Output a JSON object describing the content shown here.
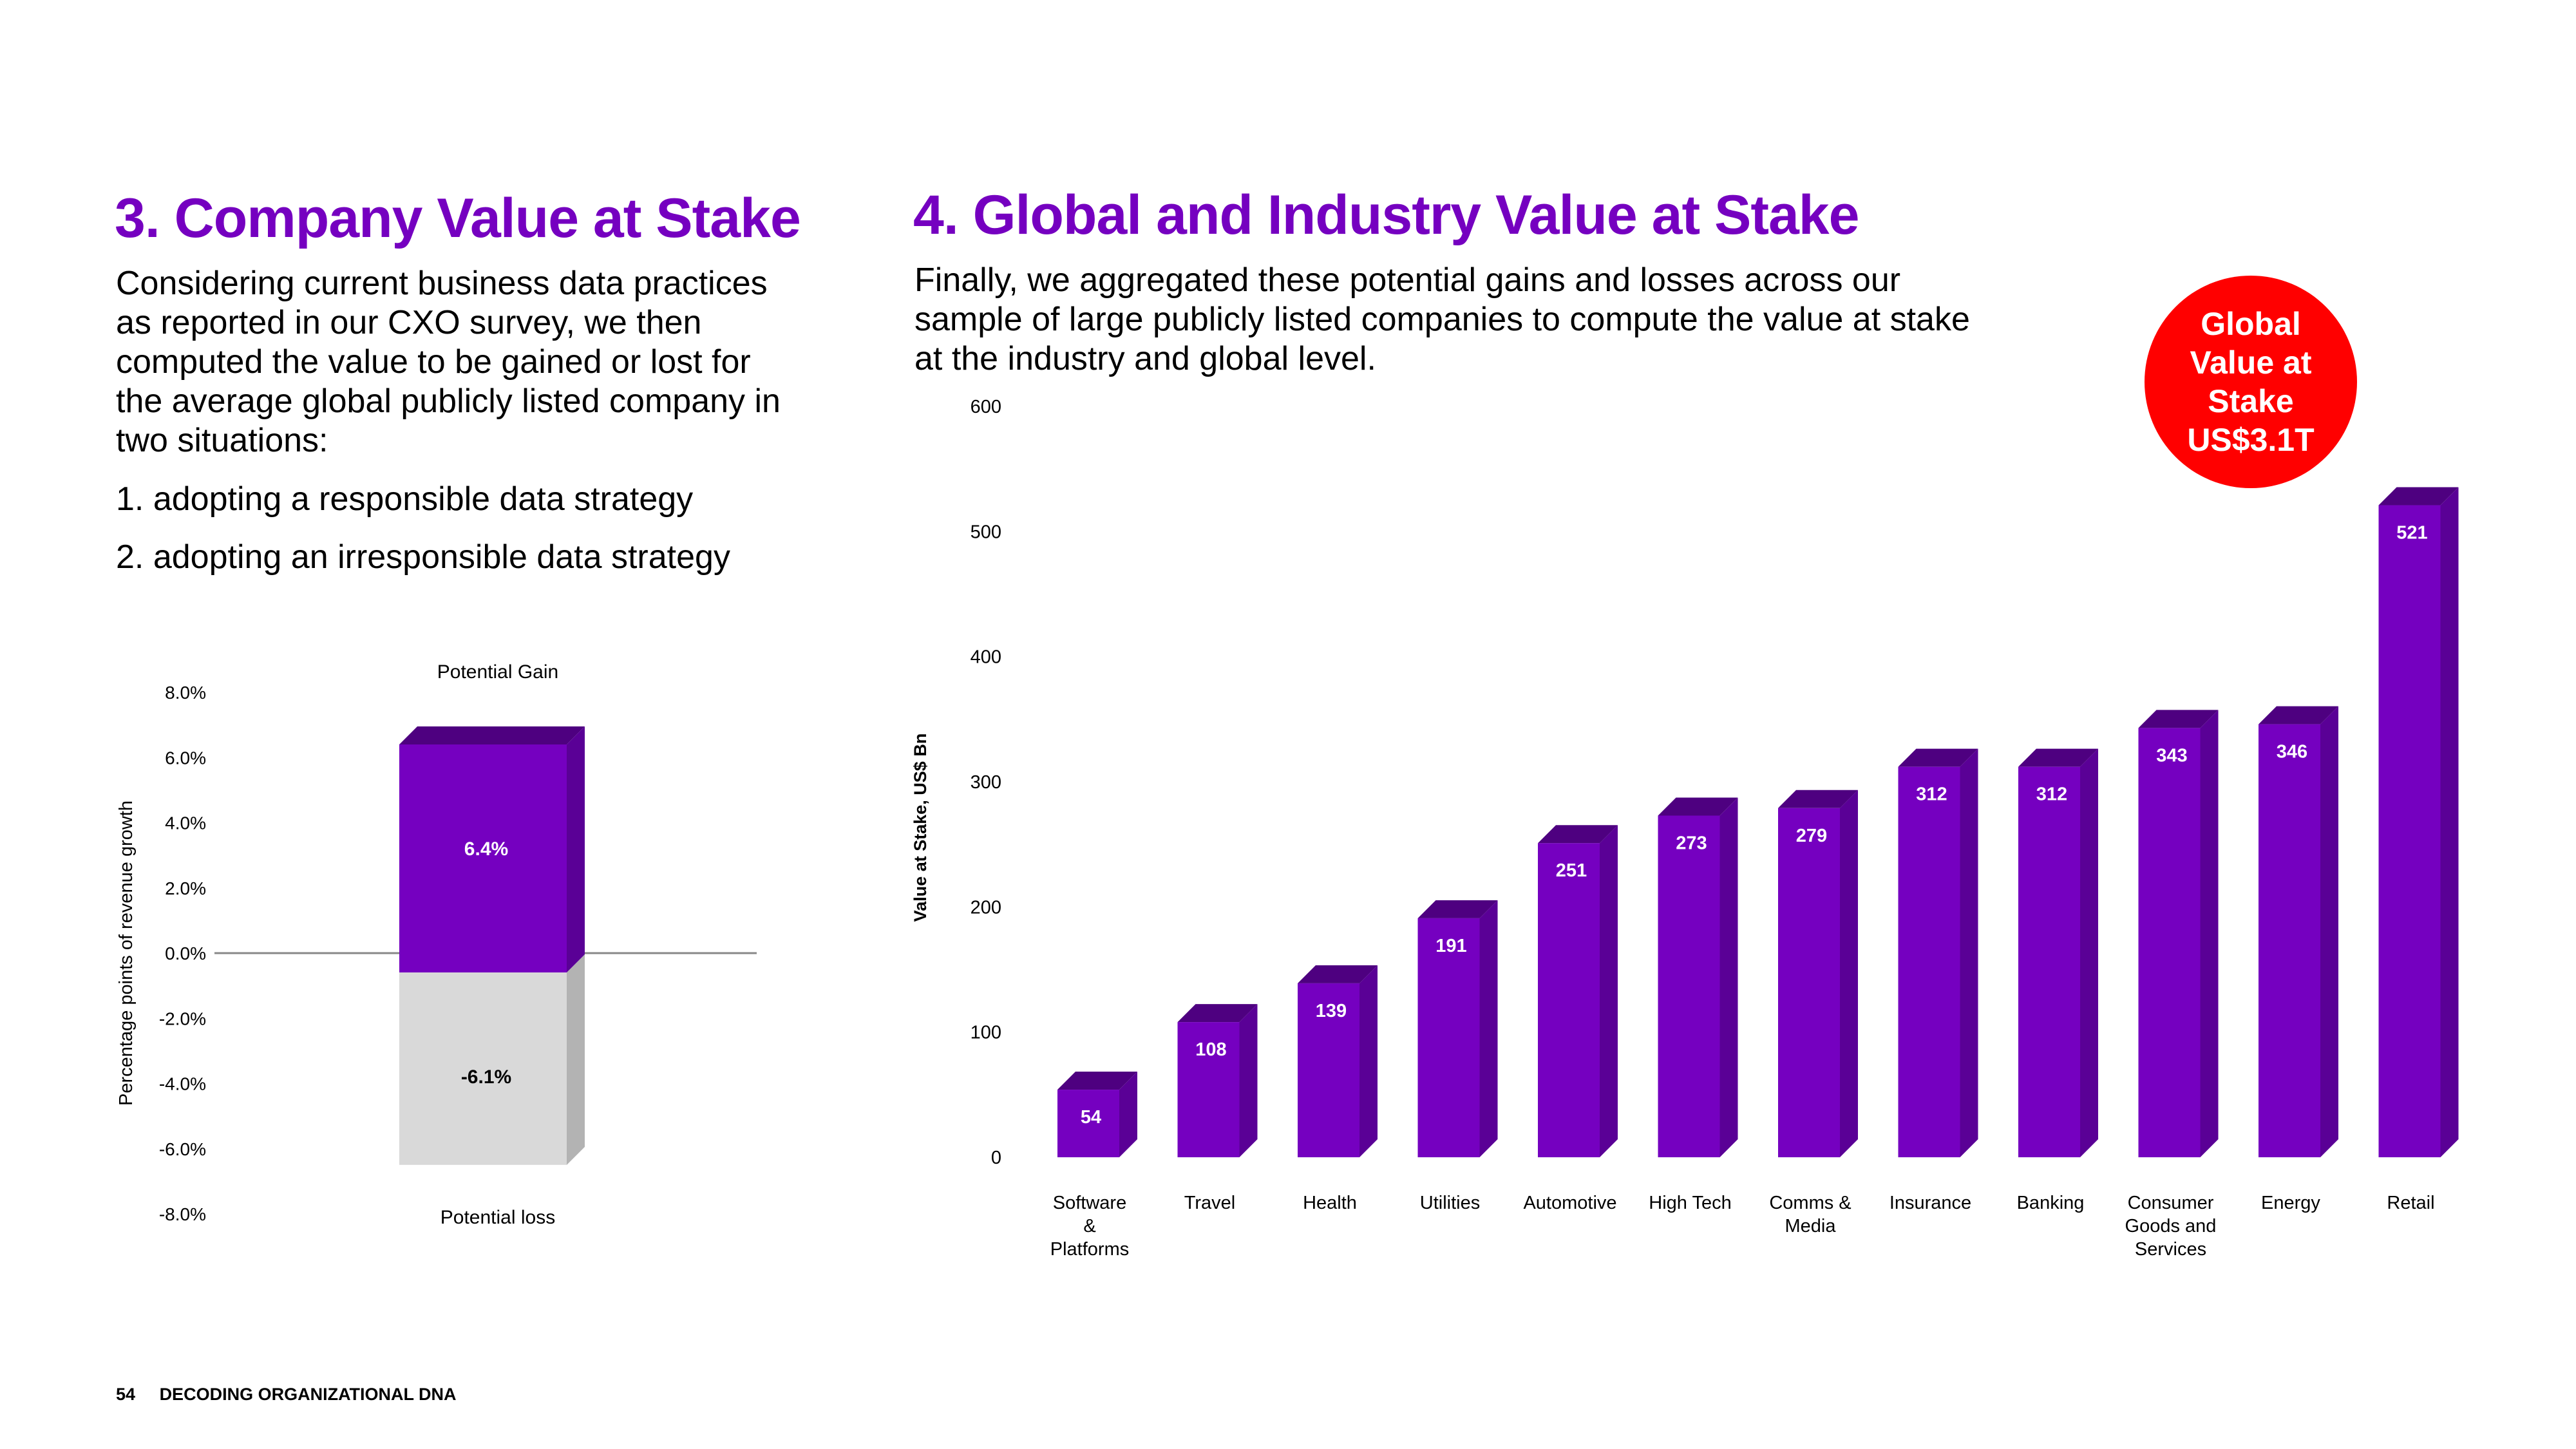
{
  "left": {
    "title": "3. Company Value at Stake",
    "intro_lines": [
      "Considering current business data practices",
      "as reported in our CXO survey, we then",
      "computed the value to be gained or lost for",
      "the average global publicly listed company in",
      "two situations:"
    ],
    "list": [
      "1. adopting a responsible data strategy",
      "2. adopting an irresponsible data strategy"
    ]
  },
  "right": {
    "title": "4. Global and Industry Value at Stake",
    "intro_lines": [
      "Finally, we aggregated these potential gains and losses across our",
      "sample of large publicly listed companies to compute the value at stake",
      "at the industry and global level."
    ]
  },
  "badge": {
    "lines": [
      "Global",
      "Value at",
      "Stake",
      "US$3.1T"
    ]
  },
  "footer": {
    "page_number": "54",
    "title": "DECODING ORGANIZATIONAL DNA"
  },
  "colors": {
    "purple": "#7500c0",
    "purple_dark": "#4e0080",
    "purple_side": "#5a0096",
    "grey_front": "#d9d9d9",
    "grey_side": "#b3b3b3",
    "badge_red": "#ff0000"
  },
  "chart_data": [
    {
      "type": "bar",
      "title": "",
      "ylabel": "Percentage  points of revenue growth",
      "y_ticks": [
        "8.0%",
        "6.0%",
        "4.0%",
        "2.0%",
        "0.0%",
        "-2.0%",
        "-4.0%",
        "-6.0%",
        "-8.0%"
      ],
      "ylim": [
        -8,
        8
      ],
      "bars": [
        {
          "label": "Potential Gain",
          "value": 6.4,
          "data_label": "6.4%"
        },
        {
          "label": "Potential loss",
          "value": -6.1,
          "data_label": "-6.1%"
        }
      ]
    },
    {
      "type": "bar",
      "title": "",
      "ylabel": "Value at Stake, US$ Bn",
      "ylim": [
        0,
        600
      ],
      "y_ticks": [
        0,
        100,
        200,
        300,
        400,
        500,
        600
      ],
      "categories": [
        [
          "Software",
          "&",
          "Platforms"
        ],
        [
          "Travel"
        ],
        [
          "Health"
        ],
        [
          "Utilities"
        ],
        [
          "Automotive"
        ],
        [
          "High Tech"
        ],
        [
          "Comms &",
          "Media"
        ],
        [
          "Insurance"
        ],
        [
          "Banking"
        ],
        [
          "Consumer",
          "Goods and",
          "Services"
        ],
        [
          "Energy"
        ],
        [
          "Retail"
        ]
      ],
      "values": [
        54,
        108,
        139,
        191,
        251,
        273,
        279,
        312,
        312,
        343,
        346,
        521
      ]
    }
  ]
}
